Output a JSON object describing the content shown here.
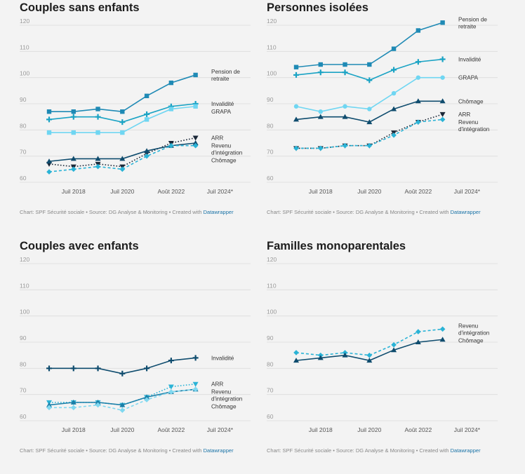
{
  "footer": {
    "prefix": "Chart: SPF Sécurité sociale • Source: DG Analyse & Monitoring • Created with",
    "link": "Datawrapper"
  },
  "colors": {
    "pension": "#1f8ab5",
    "invalidite": "#1aa3c4",
    "grapa": "#6fd6f2",
    "chomage": "#0f4c6e",
    "arr": "#1b2838",
    "revenu": "#2ab3d6",
    "grid": "#dddddd"
  },
  "chart_data": [
    {
      "type": "line",
      "title": "Couples sans enfants",
      "ylim": [
        60,
        120
      ],
      "yticks": [
        60,
        70,
        80,
        90,
        100,
        110,
        120
      ],
      "xlim": [
        0,
        13
      ],
      "xticks": [
        {
          "x": 2,
          "label": "Juil 2018"
        },
        {
          "x": 6,
          "label": "Juil 2020"
        },
        {
          "x": 10,
          "label": "Août 2022"
        },
        {
          "x": 14,
          "label": "Juil 2024*"
        }
      ],
      "series": [
        {
          "name": "Pension de retraite",
          "label_lines": [
            "Pension de",
            "retraite"
          ],
          "color": "#1f8ab5",
          "marker": "square",
          "dash": "solid",
          "x": [
            0,
            2,
            4,
            6,
            8,
            10,
            12
          ],
          "values": [
            87,
            87,
            88,
            87,
            93,
            98,
            101
          ]
        },
        {
          "name": "Invalidité",
          "label_lines": [
            "Invalidité"
          ],
          "color": "#1aa3c4",
          "marker": "plus",
          "dash": "solid",
          "x": [
            0,
            2,
            4,
            6,
            8,
            10,
            12
          ],
          "values": [
            84,
            85,
            85,
            83,
            86,
            89,
            90
          ]
        },
        {
          "name": "GRAPA",
          "label_lines": [
            "GRAPA"
          ],
          "color": "#6fd6f2",
          "marker": "square",
          "dash": "solid",
          "x": [
            0,
            2,
            4,
            6,
            8,
            10,
            12
          ],
          "values": [
            79,
            79,
            79,
            79,
            84,
            88,
            89
          ]
        },
        {
          "name": "ARR",
          "label_lines": [
            "ARR"
          ],
          "color": "#1b2838",
          "marker": "triangle-down",
          "dash": "dotted",
          "x": [
            0,
            2,
            4,
            6,
            8,
            10,
            12
          ],
          "values": [
            67,
            66,
            67,
            66,
            71,
            75,
            77
          ]
        },
        {
          "name": "Chômage",
          "label_lines": [
            "Chômage"
          ],
          "color": "#0f4c6e",
          "marker": "triangle-up",
          "dash": "solid",
          "x": [
            0,
            2,
            4,
            6,
            8,
            10,
            12
          ],
          "values": [
            68,
            69,
            69,
            69,
            72,
            74,
            75
          ]
        },
        {
          "name": "Revenu d'intégration",
          "label_lines": [
            "Revenu",
            "d'intégration"
          ],
          "color": "#2ab3d6",
          "marker": "diamond",
          "dash": "dashed",
          "x": [
            0,
            2,
            4,
            6,
            8,
            10,
            12
          ],
          "values": [
            64,
            65,
            66,
            65,
            70,
            74,
            74
          ]
        }
      ]
    },
    {
      "type": "line",
      "title": "Personnes isolées",
      "ylim": [
        60,
        120
      ],
      "yticks": [
        60,
        70,
        80,
        90,
        100,
        110,
        120
      ],
      "xlim": [
        0,
        13
      ],
      "xticks": [
        {
          "x": 2,
          "label": "Juil 2018"
        },
        {
          "x": 6,
          "label": "Juil 2020"
        },
        {
          "x": 10,
          "label": "Août 2022"
        },
        {
          "x": 14,
          "label": "Juil 2024*"
        }
      ],
      "series": [
        {
          "name": "Pension de retraite",
          "label_lines": [
            "Pension de",
            "retraite"
          ],
          "color": "#1f8ab5",
          "marker": "square",
          "dash": "solid",
          "x": [
            0,
            2,
            4,
            6,
            8,
            10,
            12
          ],
          "values": [
            104,
            105,
            105,
            105,
            111,
            118,
            121
          ]
        },
        {
          "name": "Invalidité",
          "label_lines": [
            "Invalidité"
          ],
          "color": "#1aa3c4",
          "marker": "plus",
          "dash": "solid",
          "x": [
            0,
            2,
            4,
            6,
            8,
            10,
            12
          ],
          "values": [
            101,
            102,
            102,
            99,
            103,
            106,
            107
          ]
        },
        {
          "name": "GRAPA",
          "label_lines": [
            "GRAPA"
          ],
          "color": "#6fd6f2",
          "marker": "circle",
          "dash": "solid",
          "x": [
            0,
            2,
            4,
            6,
            8,
            10,
            12
          ],
          "values": [
            89,
            87,
            89,
            88,
            94,
            100,
            100
          ]
        },
        {
          "name": "Chômage",
          "label_lines": [
            "Chômage"
          ],
          "color": "#0f4c6e",
          "marker": "triangle-up",
          "dash": "solid",
          "x": [
            0,
            2,
            4,
            6,
            8,
            10,
            12
          ],
          "values": [
            84,
            85,
            85,
            83,
            88,
            91,
            91
          ]
        },
        {
          "name": "ARR",
          "label_lines": [
            "ARR"
          ],
          "color": "#1b2838",
          "marker": "triangle-down",
          "dash": "dotted",
          "x": [
            0,
            2,
            4,
            6,
            8,
            10,
            12
          ],
          "values": [
            73,
            73,
            74,
            74,
            79,
            83,
            86
          ]
        },
        {
          "name": "Revenu d'intégration",
          "label_lines": [
            "Revenu",
            "d'intégration"
          ],
          "color": "#2ab3d6",
          "marker": "diamond",
          "dash": "dashed",
          "x": [
            0,
            2,
            4,
            6,
            8,
            10,
            12
          ],
          "values": [
            73,
            73,
            74,
            74,
            78,
            83,
            84
          ]
        }
      ]
    },
    {
      "type": "line",
      "title": "Couples avec enfants",
      "ylim": [
        60,
        120
      ],
      "yticks": [
        60,
        70,
        80,
        90,
        100,
        110,
        120
      ],
      "xlim": [
        0,
        13
      ],
      "xticks": [
        {
          "x": 2,
          "label": "Juil 2018"
        },
        {
          "x": 6,
          "label": "Juil 2020"
        },
        {
          "x": 10,
          "label": "Août 2022"
        },
        {
          "x": 14,
          "label": "Juil 2024*"
        }
      ],
      "series": [
        {
          "name": "Invalidité",
          "label_lines": [
            "Invalidité"
          ],
          "color": "#0f4c6e",
          "marker": "plus",
          "dash": "solid",
          "x": [
            0,
            2,
            4,
            6,
            8,
            10,
            12
          ],
          "values": [
            80,
            80,
            80,
            78,
            80,
            83,
            84
          ]
        },
        {
          "name": "ARR",
          "label_lines": [
            "ARR"
          ],
          "color": "#2ab3d6",
          "marker": "triangle-down",
          "dash": "dotted",
          "x": [
            0,
            2,
            4,
            6,
            8,
            10,
            12
          ],
          "values": [
            67,
            67,
            67,
            66,
            69,
            73,
            74
          ]
        },
        {
          "name": "Chômage",
          "label_lines": [
            "Chômage"
          ],
          "color": "#1a7fa8",
          "marker": "triangle-up",
          "dash": "solid",
          "x": [
            0,
            2,
            4,
            6,
            8,
            10,
            12
          ],
          "values": [
            66,
            67,
            67,
            66,
            69,
            71,
            72
          ]
        },
        {
          "name": "Revenu d'intégration",
          "label_lines": [
            "Revenu",
            "d'intégration"
          ],
          "color": "#7fd8f0",
          "marker": "diamond",
          "dash": "dashed",
          "x": [
            0,
            2,
            4,
            6,
            8,
            10,
            12
          ],
          "values": [
            65,
            65,
            66,
            64,
            68,
            71,
            72
          ]
        }
      ]
    },
    {
      "type": "line",
      "title": "Familles monoparentales",
      "ylim": [
        60,
        120
      ],
      "yticks": [
        60,
        70,
        80,
        90,
        100,
        110,
        120
      ],
      "xlim": [
        0,
        13
      ],
      "xticks": [
        {
          "x": 2,
          "label": "Juil 2018"
        },
        {
          "x": 6,
          "label": "Juil 2020"
        },
        {
          "x": 10,
          "label": "Août 2022"
        },
        {
          "x": 14,
          "label": "Juil 2024*"
        }
      ],
      "series": [
        {
          "name": "Revenu d'intégration",
          "label_lines": [
            "Revenu",
            "d'intégration"
          ],
          "color": "#2ab3d6",
          "marker": "diamond",
          "dash": "dashed",
          "x": [
            0,
            2,
            4,
            6,
            8,
            10,
            12
          ],
          "values": [
            86,
            85,
            86,
            85,
            89,
            94,
            95
          ]
        },
        {
          "name": "Chômage",
          "label_lines": [
            "Chômage"
          ],
          "color": "#0f4c6e",
          "marker": "triangle-up",
          "dash": "solid",
          "x": [
            0,
            2,
            4,
            6,
            8,
            10,
            12
          ],
          "values": [
            83,
            84,
            85,
            83,
            87,
            90,
            91
          ]
        }
      ]
    }
  ]
}
